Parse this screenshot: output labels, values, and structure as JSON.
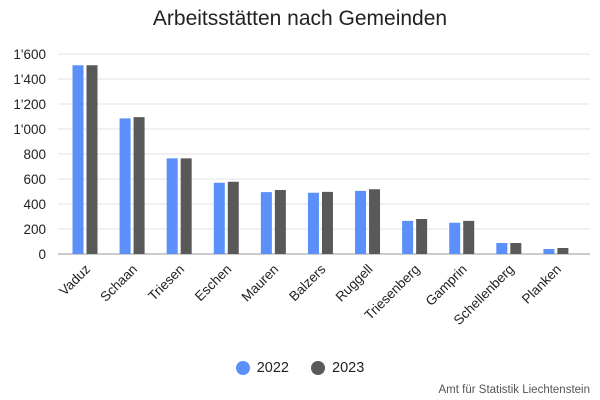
{
  "chart_data": {
    "type": "bar",
    "title": "Arbeitsstätten nach Gemeinden",
    "categories": [
      "Vaduz",
      "Schaan",
      "Triesen",
      "Eschen",
      "Mauren",
      "Balzers",
      "Ruggell",
      "Triesenberg",
      "Gamprin",
      "Schellenberg",
      "Planken"
    ],
    "series": [
      {
        "name": "2022",
        "color": "#5b8ff9",
        "values": [
          1510,
          1085,
          765,
          570,
          495,
          490,
          505,
          265,
          250,
          88,
          40
        ]
      },
      {
        "name": "2023",
        "color": "#595959",
        "values": [
          1510,
          1095,
          765,
          578,
          512,
          497,
          518,
          280,
          265,
          88,
          48
        ]
      }
    ],
    "ylim": [
      0,
      1600
    ],
    "yticks": [
      0,
      200,
      400,
      600,
      800,
      1000,
      1200,
      1400,
      1600
    ],
    "ytick_labels": [
      "0",
      "200",
      "400",
      "600",
      "800",
      "1'000",
      "1'200",
      "1'400",
      "1'600"
    ],
    "xlabel": "",
    "ylabel": "",
    "grid": true,
    "legend_position": "bottom",
    "source": "Amt für Statistik Liechtenstein"
  }
}
